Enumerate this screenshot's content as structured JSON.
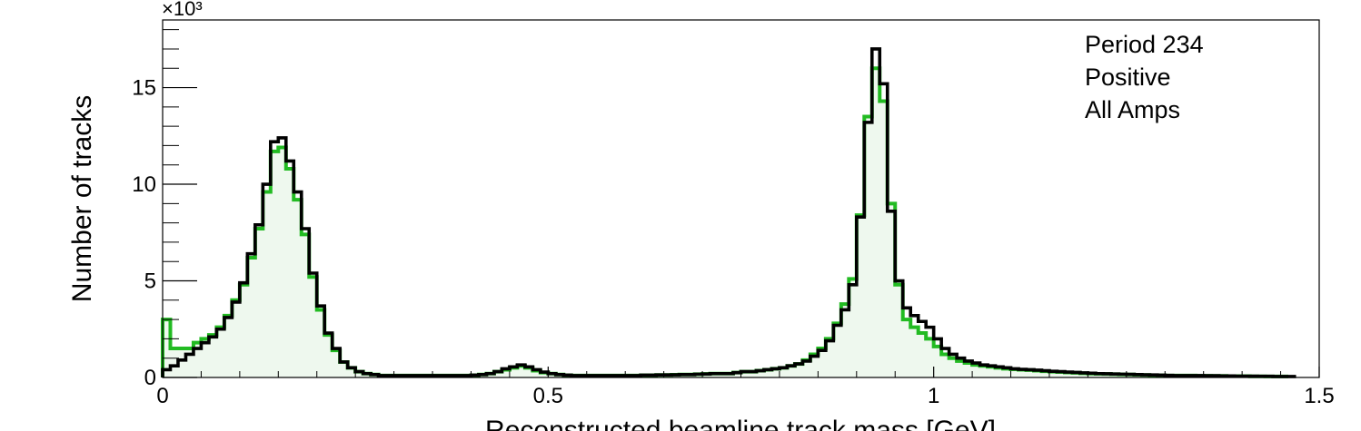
{
  "chart_data": {
    "type": "histogram",
    "xlabel": "Reconstructed beamline track mass [GeV]",
    "ylabel": "Number of tracks",
    "y_multiplier_label": "×10³",
    "xlim": [
      0,
      1.5
    ],
    "ylim": [
      0,
      18.5
    ],
    "bin_width": 0.01,
    "x_ticks": [
      {
        "value": 0,
        "label": "0"
      },
      {
        "value": 0.5,
        "label": "0.5"
      },
      {
        "value": 1,
        "label": "1"
      },
      {
        "value": 1.5,
        "label": "1.5"
      }
    ],
    "y_ticks": [
      {
        "value": 0,
        "label": "0"
      },
      {
        "value": 5,
        "label": "5"
      },
      {
        "value": 10,
        "label": "10"
      },
      {
        "value": 15,
        "label": "15"
      }
    ],
    "annotation_lines": [
      "Period 234",
      "Positive",
      "All Amps"
    ],
    "series": [
      {
        "color": "#22bb22",
        "fill": "#eef8ee",
        "values": [
          3.0,
          1.5,
          1.5,
          1.5,
          1.8,
          2.0,
          2.2,
          2.6,
          3.2,
          4.0,
          4.8,
          6.2,
          7.7,
          9.6,
          11.7,
          11.9,
          10.8,
          9.2,
          7.4,
          5.2,
          3.5,
          2.2,
          1.4,
          0.8,
          0.5,
          0.3,
          0.2,
          0.15,
          0.1,
          0.1,
          0.1,
          0.1,
          0.1,
          0.1,
          0.1,
          0.1,
          0.1,
          0.1,
          0.1,
          0.1,
          0.12,
          0.15,
          0.2,
          0.3,
          0.4,
          0.5,
          0.6,
          0.5,
          0.35,
          0.25,
          0.2,
          0.15,
          0.12,
          0.1,
          0.1,
          0.1,
          0.1,
          0.1,
          0.1,
          0.1,
          0.1,
          0.1,
          0.12,
          0.12,
          0.13,
          0.13,
          0.14,
          0.15,
          0.15,
          0.17,
          0.18,
          0.2,
          0.2,
          0.2,
          0.25,
          0.3,
          0.3,
          0.35,
          0.4,
          0.45,
          0.5,
          0.6,
          0.7,
          0.9,
          1.2,
          1.5,
          2.0,
          2.8,
          3.8,
          5.1,
          8.4,
          13.5,
          16.0,
          14.3,
          9.0,
          4.8,
          3.0,
          2.6,
          2.3,
          2.0,
          1.6,
          1.2,
          1.0,
          0.85,
          0.75,
          0.65,
          0.6,
          0.55,
          0.5,
          0.45,
          0.42,
          0.4,
          0.38,
          0.35,
          0.32,
          0.3,
          0.28,
          0.26,
          0.24,
          0.22,
          0.2,
          0.19,
          0.18,
          0.17,
          0.16,
          0.15,
          0.14,
          0.13,
          0.12,
          0.11,
          0.1,
          0.1,
          0.1,
          0.1,
          0.09,
          0.09,
          0.08,
          0.08,
          0.07,
          0.07,
          0.07,
          0.06,
          0.06,
          0.05,
          0.05,
          0.05
        ]
      },
      {
        "color": "#000000",
        "fill": "none",
        "values": [
          0.4,
          0.6,
          0.9,
          1.2,
          1.5,
          1.8,
          2.1,
          2.5,
          3.1,
          3.9,
          4.9,
          6.4,
          7.9,
          10.0,
          12.2,
          12.4,
          11.2,
          9.6,
          7.7,
          5.4,
          3.7,
          2.3,
          1.5,
          0.8,
          0.5,
          0.3,
          0.2,
          0.15,
          0.1,
          0.1,
          0.1,
          0.1,
          0.1,
          0.1,
          0.1,
          0.1,
          0.1,
          0.1,
          0.1,
          0.1,
          0.12,
          0.15,
          0.2,
          0.3,
          0.45,
          0.55,
          0.65,
          0.55,
          0.4,
          0.28,
          0.2,
          0.15,
          0.12,
          0.1,
          0.1,
          0.1,
          0.1,
          0.1,
          0.1,
          0.1,
          0.1,
          0.1,
          0.12,
          0.12,
          0.13,
          0.13,
          0.14,
          0.15,
          0.15,
          0.17,
          0.18,
          0.2,
          0.2,
          0.2,
          0.25,
          0.3,
          0.3,
          0.35,
          0.4,
          0.45,
          0.5,
          0.6,
          0.7,
          0.85,
          1.1,
          1.4,
          1.9,
          2.7,
          3.5,
          4.8,
          8.3,
          13.2,
          17.0,
          15.2,
          8.6,
          5.0,
          3.6,
          3.2,
          2.9,
          2.6,
          2.0,
          1.5,
          1.2,
          1.0,
          0.85,
          0.75,
          0.65,
          0.6,
          0.55,
          0.5,
          0.45,
          0.42,
          0.4,
          0.38,
          0.35,
          0.32,
          0.3,
          0.28,
          0.26,
          0.24,
          0.22,
          0.2,
          0.19,
          0.18,
          0.17,
          0.16,
          0.15,
          0.14,
          0.13,
          0.12,
          0.11,
          0.1,
          0.1,
          0.1,
          0.1,
          0.09,
          0.09,
          0.08,
          0.08,
          0.07,
          0.07,
          0.07,
          0.06,
          0.06,
          0.05,
          0.05,
          0.05
        ]
      }
    ]
  }
}
